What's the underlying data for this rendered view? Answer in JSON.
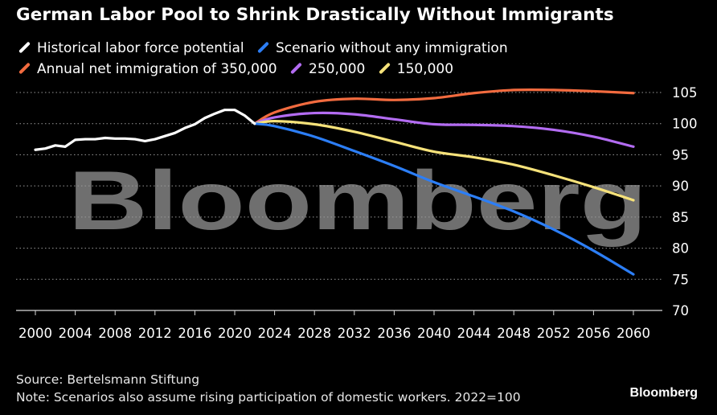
{
  "colors": {
    "historical": "#ffffff",
    "no_immigration": "#2c7ef6",
    "n350": "#f26b3f",
    "n250": "#b36cf2",
    "n150": "#f6e27a",
    "grid": "#9a9a9a",
    "watermark": "#6f6f6f"
  },
  "watermark_text": "Bloomberg",
  "chart_data": {
    "type": "line",
    "title": "German Labor Pool to Shrink Drastically Without Immigrants",
    "xlabel": "",
    "ylabel": "",
    "xlim": [
      1999,
      2061
    ],
    "ylim": [
      70,
      106
    ],
    "x_ticks": [
      2000,
      2004,
      2008,
      2012,
      2016,
      2020,
      2024,
      2028,
      2032,
      2036,
      2040,
      2044,
      2048,
      2052,
      2056,
      2060
    ],
    "y_ticks": [
      70,
      75,
      80,
      85,
      90,
      95,
      100,
      105
    ],
    "legend": [
      {
        "key": "historical",
        "label": "Historical labor force potential"
      },
      {
        "key": "no_immigration",
        "label": "Scenario without any immigration"
      },
      {
        "key": "n350",
        "label": "Annual net immigration of 350,000"
      },
      {
        "key": "n250",
        "label": "250,000"
      },
      {
        "key": "n150",
        "label": "150,000"
      }
    ],
    "series": [
      {
        "key": "historical",
        "name": "Historical labor force potential",
        "x": [
          2000,
          2001,
          2002,
          2003,
          2004,
          2005,
          2006,
          2007,
          2008,
          2009,
          2010,
          2011,
          2012,
          2013,
          2014,
          2015,
          2016,
          2017,
          2018,
          2019,
          2020,
          2021,
          2022
        ],
        "values": [
          95.8,
          96.0,
          96.5,
          96.3,
          97.4,
          97.5,
          97.5,
          97.7,
          97.6,
          97.6,
          97.5,
          97.2,
          97.5,
          98.0,
          98.5,
          99.3,
          99.9,
          100.9,
          101.6,
          102.2,
          102.2,
          101.3,
          100.0
        ]
      },
      {
        "key": "no_immigration",
        "name": "Scenario without any immigration",
        "x": [
          2022,
          2024,
          2028,
          2032,
          2036,
          2040,
          2044,
          2048,
          2052,
          2056,
          2060
        ],
        "values": [
          100.0,
          99.6,
          97.9,
          95.6,
          93.2,
          90.6,
          88.3,
          85.9,
          83.0,
          79.6,
          75.8
        ]
      },
      {
        "key": "n350",
        "name": "Annual net immigration of 350,000",
        "x": [
          2022,
          2024,
          2028,
          2032,
          2036,
          2040,
          2044,
          2048,
          2052,
          2056,
          2060
        ],
        "values": [
          100.0,
          101.8,
          103.5,
          104.0,
          103.8,
          104.1,
          104.9,
          105.4,
          105.4,
          105.2,
          104.9
        ]
      },
      {
        "key": "n250",
        "name": "250,000",
        "x": [
          2022,
          2024,
          2028,
          2032,
          2036,
          2040,
          2044,
          2048,
          2052,
          2056,
          2060
        ],
        "values": [
          100.0,
          101.0,
          101.7,
          101.5,
          100.7,
          99.9,
          99.8,
          99.6,
          99.0,
          97.9,
          96.3
        ]
      },
      {
        "key": "n150",
        "name": "150,000",
        "x": [
          2022,
          2024,
          2028,
          2032,
          2036,
          2040,
          2044,
          2048,
          2052,
          2056,
          2060
        ],
        "values": [
          100.0,
          100.4,
          99.9,
          98.7,
          97.1,
          95.5,
          94.6,
          93.4,
          91.7,
          89.8,
          87.7
        ]
      }
    ]
  },
  "footer": {
    "source": "Source: Bertelsmann Stiftung",
    "note": "Note: Scenarios also assume rising participation of domestic workers. 2022=100",
    "brand": "Bloomberg"
  }
}
